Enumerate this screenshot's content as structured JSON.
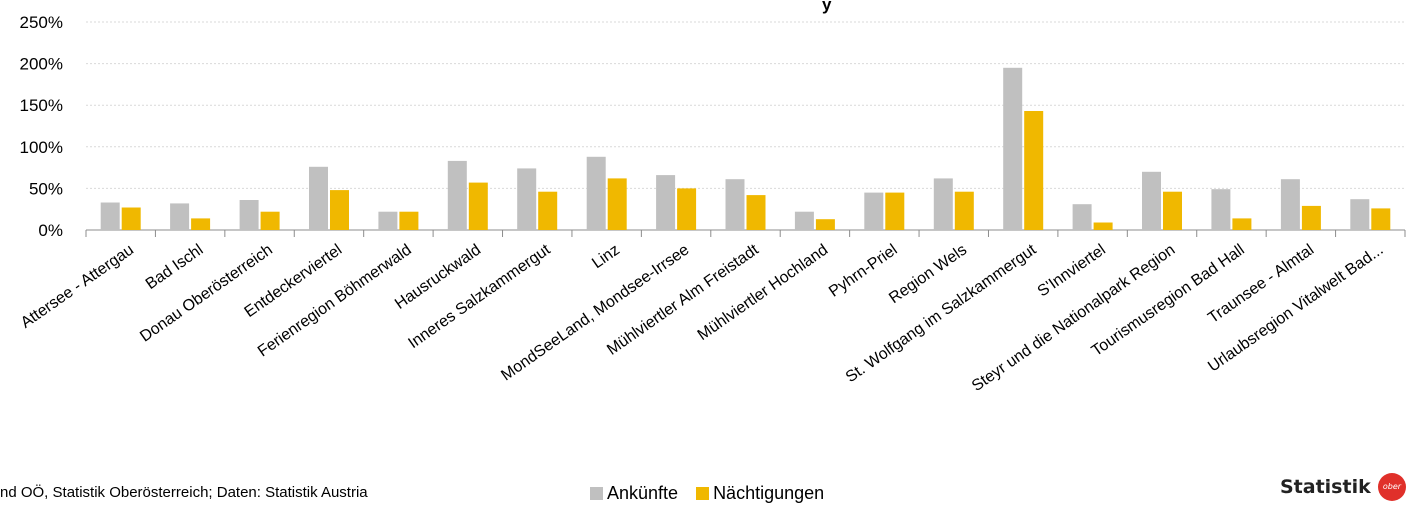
{
  "chart_data": {
    "type": "bar",
    "title": "",
    "title_visible_fragment": "y",
    "xlabel": "",
    "ylabel": "",
    "ylim": [
      0,
      250
    ],
    "yticks": [
      "0%",
      "50%",
      "100%",
      "150%",
      "200%",
      "250%"
    ],
    "ytick_values": [
      0,
      50,
      100,
      150,
      200,
      250
    ],
    "grid": true,
    "legend_position": "bottom",
    "categories": [
      "Attersee - Attergau",
      "Bad Ischl",
      "Donau Oberösterreich",
      "Entdeckerviertel",
      "Ferienregion Böhmerwald",
      "Hausruckwald",
      "Inneres Salzkammergut",
      "Linz",
      "MondSeeLand, Mondsee-Irrsee",
      "Mühlviertler Alm Freistadt",
      "Mühlviertler Hochland",
      "Pyhrn-Priel",
      "Region Wels",
      "St. Wolfgang im Salzkammergut",
      "S'Innviertel",
      "Steyr und die Nationalpark Region",
      "Tourismusregion Bad Hall",
      "Traunsee - Almtal",
      "Urlaubsregion Vitalwelt Bad..."
    ],
    "series": [
      {
        "name": "Ankünfte",
        "color": "#c0c0c0",
        "values": [
          33,
          32,
          36,
          76,
          22,
          83,
          74,
          88,
          66,
          61,
          22,
          45,
          62,
          195,
          31,
          70,
          49,
          61,
          37
        ]
      },
      {
        "name": "Nächtigungen",
        "color": "#f0b800",
        "values": [
          27,
          14,
          22,
          48,
          22,
          57,
          46,
          62,
          50,
          42,
          13,
          45,
          46,
          143,
          9,
          46,
          14,
          29,
          26
        ]
      }
    ]
  },
  "footer": {
    "source": "nd OÖ, Statistik Oberösterreich; Daten: Statistik Austria",
    "brand": "Statistik",
    "logo_text": "ober",
    "logo_color": "#e0302a"
  }
}
